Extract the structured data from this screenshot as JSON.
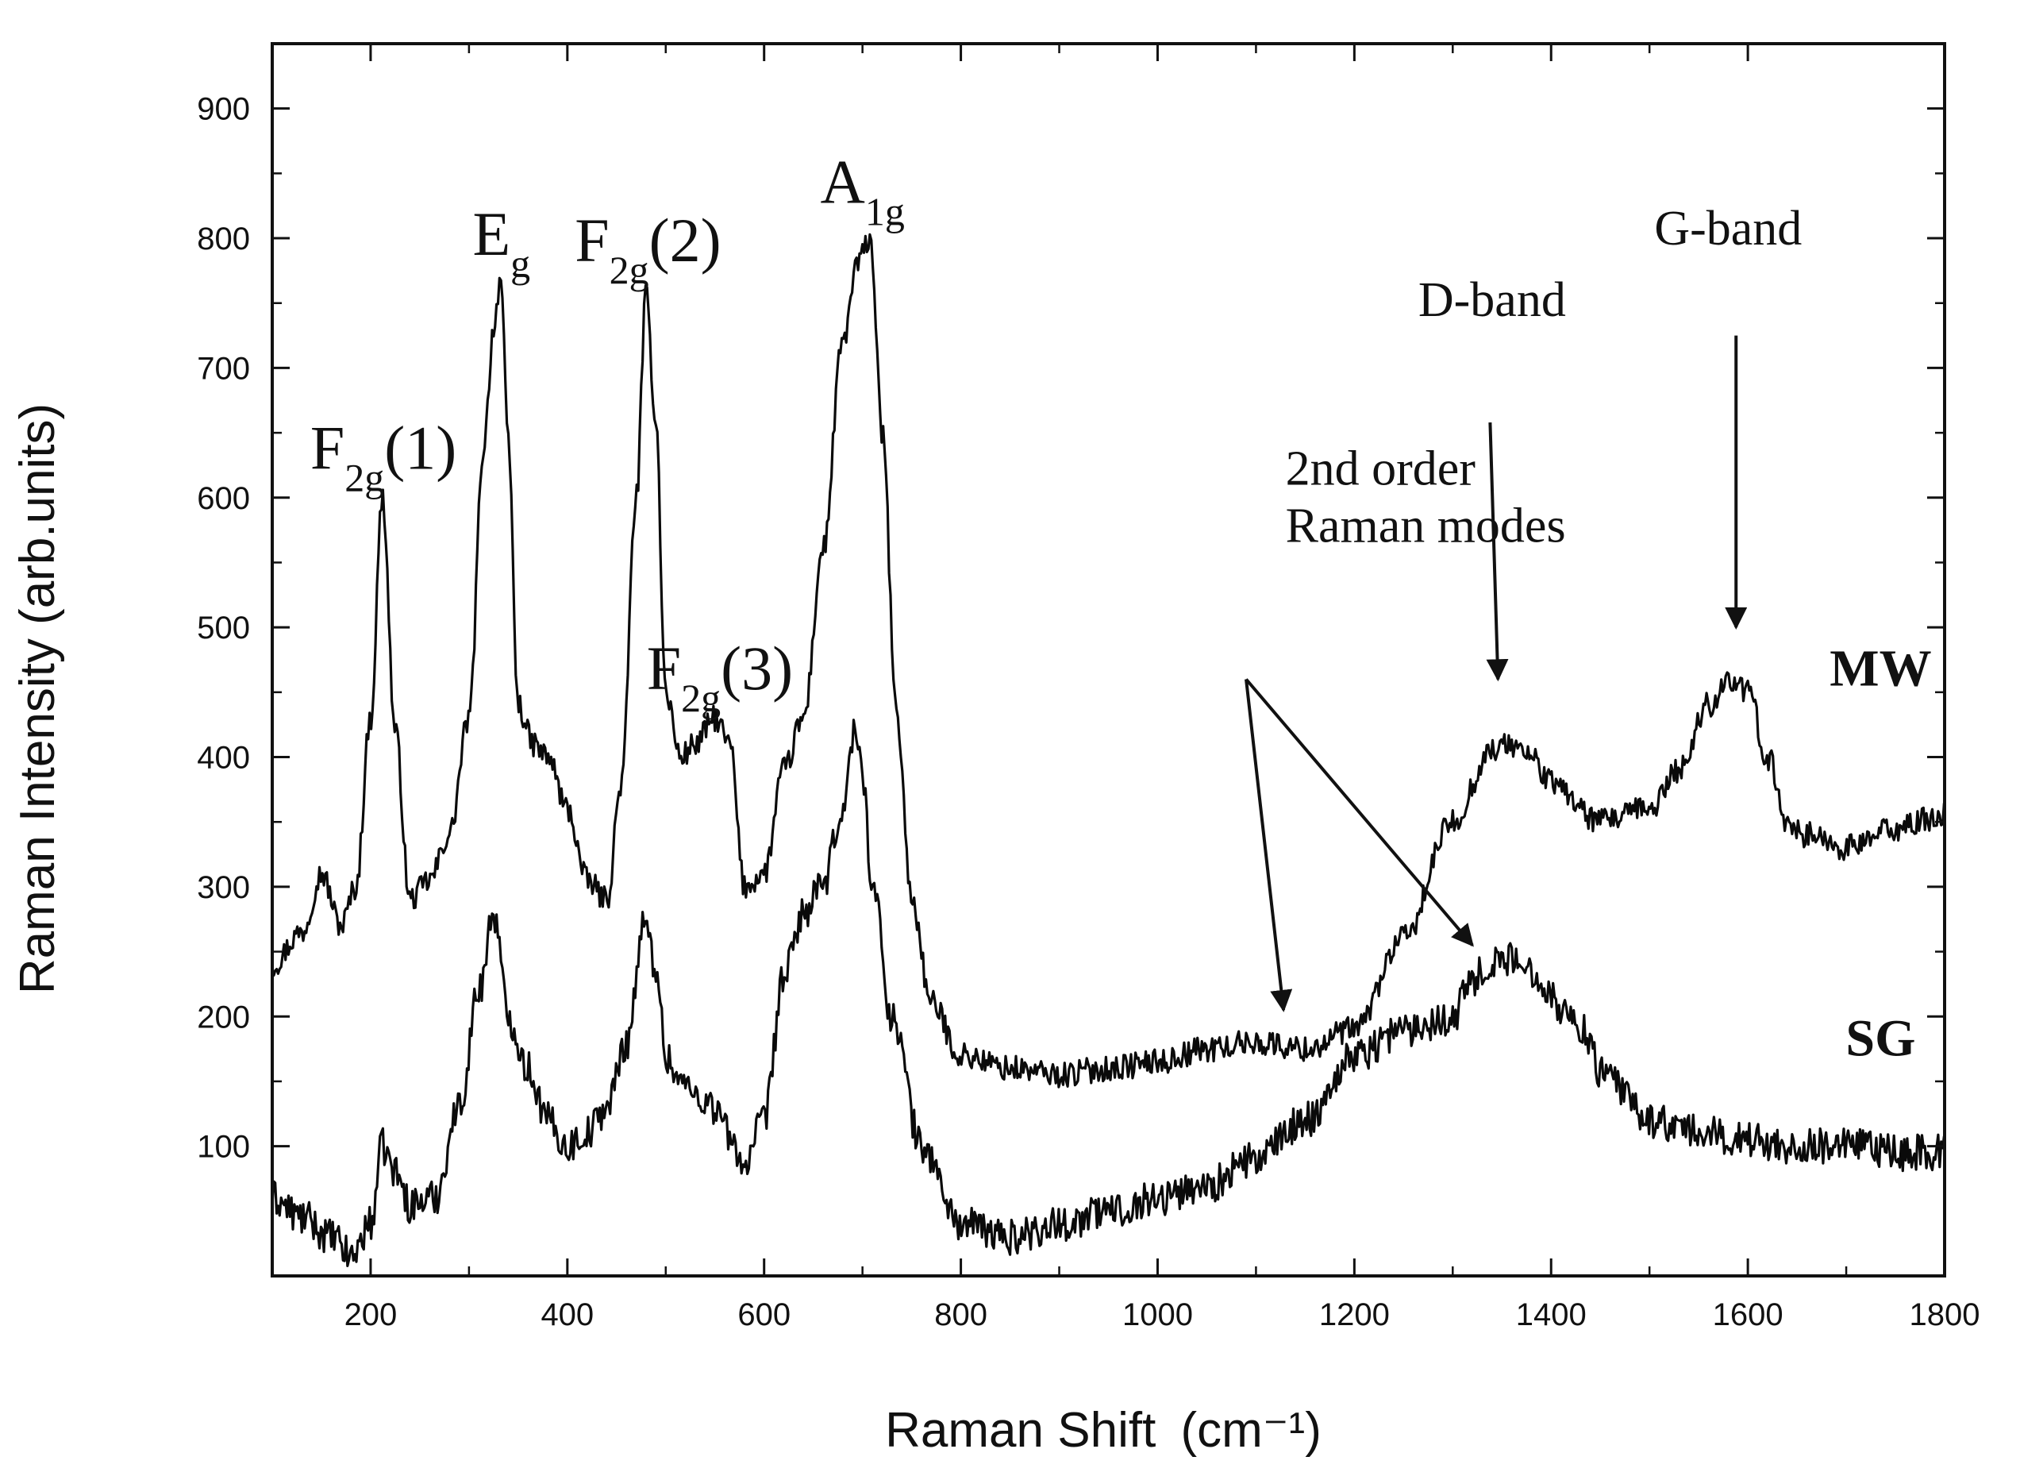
{
  "chart_data": {
    "type": "line",
    "title": "",
    "xlabel": "Raman Shift",
    "xlabel_unit": "(cm⁻¹)",
    "ylabel": "Raman Intensity (arb.units)",
    "xlim": [
      100,
      1800
    ],
    "ylim": [
      0,
      950
    ],
    "xticks": [
      200,
      400,
      600,
      800,
      1000,
      1200,
      1400,
      1600,
      1800
    ],
    "yticks": [
      100,
      200,
      300,
      400,
      500,
      600,
      700,
      800,
      900
    ],
    "grid": false,
    "series": [
      {
        "name": "MW",
        "noise": 10,
        "x": [
          100,
          130,
          150,
          170,
          185,
          200,
          212,
          225,
          240,
          260,
          280,
          300,
          315,
          325,
          332,
          340,
          350,
          365,
          380,
          400,
          420,
          440,
          455,
          470,
          480,
          490,
          500,
          515,
          530,
          550,
          565,
          580,
          600,
          620,
          640,
          660,
          680,
          695,
          708,
          720,
          735,
          750,
          770,
          800,
          850,
          900,
          950,
          1000,
          1050,
          1100,
          1150,
          1200,
          1250,
          1300,
          1340,
          1360,
          1380,
          1400,
          1450,
          1500,
          1530,
          1560,
          1580,
          1600,
          1620,
          1640,
          1660,
          1700,
          1750,
          1800
        ],
        "y": [
          240,
          265,
          310,
          270,
          300,
          430,
          600,
          420,
          290,
          305,
          340,
          430,
          640,
          730,
          770,
          640,
          440,
          410,
          400,
          360,
          305,
          290,
          380,
          600,
          755,
          660,
          450,
          400,
          410,
          430,
          410,
          300,
          310,
          390,
          430,
          560,
          720,
          780,
          800,
          650,
          430,
          290,
          210,
          170,
          160,
          155,
          160,
          165,
          175,
          180,
          175,
          190,
          260,
          350,
          405,
          410,
          400,
          380,
          350,
          360,
          390,
          440,
          460,
          450,
          400,
          350,
          340,
          330,
          345,
          355
        ]
      },
      {
        "name": "SG",
        "noise": 14,
        "x": [
          100,
          130,
          160,
          180,
          200,
          212,
          225,
          240,
          265,
          290,
          310,
          325,
          340,
          360,
          380,
          400,
          420,
          440,
          460,
          478,
          490,
          500,
          515,
          530,
          550,
          570,
          580,
          600,
          620,
          640,
          660,
          680,
          692,
          700,
          710,
          730,
          760,
          800,
          850,
          900,
          950,
          1000,
          1050,
          1100,
          1150,
          1200,
          1250,
          1300,
          1320,
          1350,
          1380,
          1420,
          1460,
          1500,
          1550,
          1600,
          1650,
          1700,
          1750,
          1800
        ],
        "y": [
          60,
          45,
          30,
          15,
          40,
          100,
          80,
          55,
          60,
          130,
          220,
          280,
          200,
          160,
          120,
          100,
          110,
          130,
          180,
          270,
          240,
          170,
          150,
          140,
          130,
          100,
          85,
          120,
          230,
          280,
          300,
          360,
          420,
          390,
          300,
          200,
          100,
          40,
          30,
          40,
          50,
          60,
          70,
          90,
          120,
          170,
          190,
          200,
          230,
          245,
          235,
          200,
          150,
          120,
          110,
          105,
          100,
          100,
          95,
          95
        ]
      }
    ],
    "peak_labels": [
      {
        "base": "F",
        "sub": "2g",
        "suffix": "(1)",
        "x": 213,
        "y": 610
      },
      {
        "base": "E",
        "sub": "g",
        "suffix": "",
        "x": 333,
        "y": 775
      },
      {
        "base": "F",
        "sub": "2g",
        "suffix": "(2)",
        "x": 482,
        "y": 770
      },
      {
        "base": "F",
        "sub": "2g",
        "suffix": "(3)",
        "x": 555,
        "y": 440
      },
      {
        "base": "A",
        "sub": "1g",
        "suffix": "",
        "x": 700,
        "y": 815
      }
    ],
    "annotations": [
      {
        "lines": [
          "D-band"
        ],
        "x": 1340,
        "y": 740,
        "arrow_from": [
          1338,
          658
        ],
        "arrow_to": [
          1346,
          460
        ]
      },
      {
        "lines": [
          "G-band"
        ],
        "x": 1580,
        "y": 795,
        "arrow_from": [
          1588,
          725
        ],
        "arrow_to": [
          1588,
          500
        ]
      },
      {
        "lines": [
          "2nd order",
          "Raman modes"
        ],
        "x": 1130,
        "y": 610,
        "arrow_from": [
          1090,
          460
        ],
        "arrow_to": [
          1128,
          205
        ],
        "arrow2_to": [
          1320,
          255
        ]
      }
    ],
    "series_labels": [
      {
        "text": "MW",
        "x": 1735,
        "y": 455
      },
      {
        "text": "SG",
        "x": 1735,
        "y": 170
      }
    ]
  }
}
